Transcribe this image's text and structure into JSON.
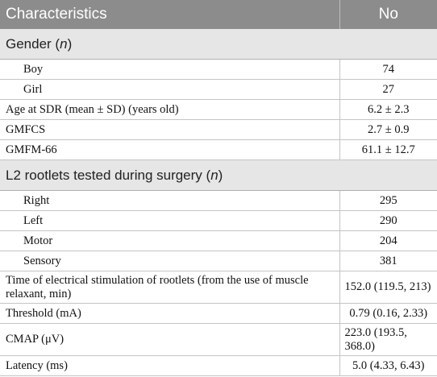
{
  "header": {
    "col1": "Characteristics",
    "col2": "No"
  },
  "sections": {
    "gender": {
      "title": "Gender (",
      "n": "n",
      "close": ")"
    },
    "l2": {
      "title": "L2 rootlets tested during surgery (",
      "n": "n",
      "close": ")"
    }
  },
  "rows": [
    {
      "label": "Boy",
      "value": "74"
    },
    {
      "label": "Girl",
      "value": "27"
    },
    {
      "label": "Age at SDR (mean ± SD) (years old)",
      "value": "6.2 ± 2.3"
    },
    {
      "label": "GMFCS",
      "value": "2.7 ± 0.9"
    },
    {
      "label": "GMFM-66",
      "value": "61.1 ± 12.7"
    },
    {
      "label": "Right",
      "value": "295"
    },
    {
      "label": "Left",
      "value": "290"
    },
    {
      "label": "Motor",
      "value": "204"
    },
    {
      "label": "Sensory",
      "value": "381"
    },
    {
      "label": "Time of electrical stimulation of rootlets (from the use of muscle relaxant, min)",
      "value": "152.0 (119.5, 213)"
    },
    {
      "label": "Threshold (mA)",
      "value": "0.79 (0.16, 2.33)"
    },
    {
      "label": "CMAP (μV)",
      "value": "223.0 (193.5, 368.0)"
    },
    {
      "label": "Latency (ms)",
      "value": "5.0 (4.33, 6.43)"
    }
  ]
}
